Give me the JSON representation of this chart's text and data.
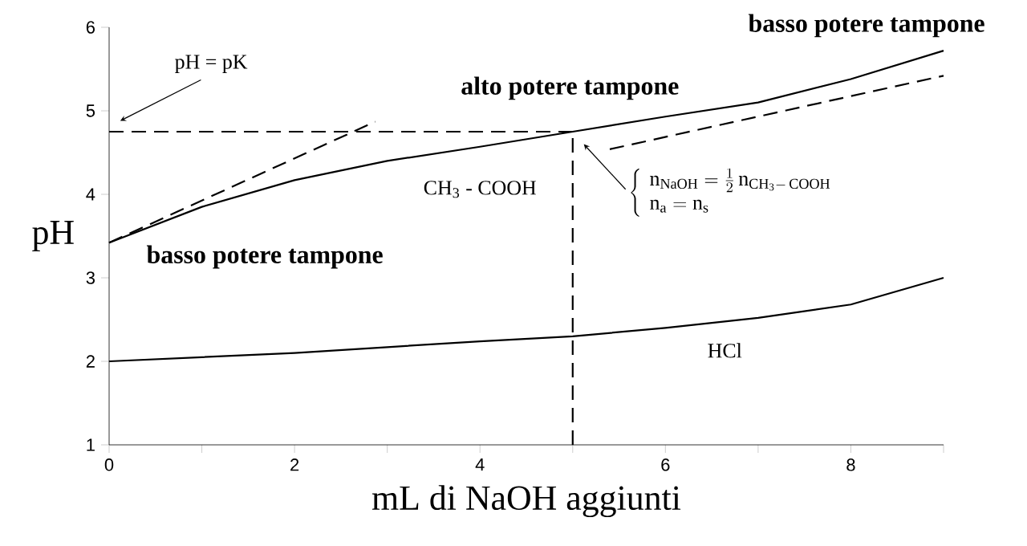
{
  "chart_data": {
    "type": "line",
    "xlabel": "mL di NaOH aggiunti",
    "ylabel": "pH",
    "xlim": [
      0,
      9
    ],
    "ylim": [
      1,
      6
    ],
    "xticks": [
      0,
      {
        "value": 1,
        "label": null
      },
      2,
      {
        "value": 3,
        "label": null
      },
      4,
      {
        "value": 5,
        "label": null
      },
      6,
      {
        "value": 7,
        "label": null
      },
      8,
      {
        "value": 9,
        "label": null
      }
    ],
    "yticks": [
      1,
      2,
      3,
      4,
      5,
      6
    ],
    "grid": false,
    "marker": "none",
    "series": [
      {
        "name": "CH$_{3}$ - COOH",
        "color": "#000000",
        "line_style": "solid",
        "x": [
          0,
          1,
          2,
          3,
          4,
          5,
          6,
          7,
          8,
          9
        ],
        "values": [
          3.42,
          3.85,
          4.17,
          4.4,
          4.57,
          4.75,
          4.93,
          5.1,
          5.38,
          5.72
        ]
      },
      {
        "name": "HCl",
        "color": "#000000",
        "line_style": "solid",
        "x": [
          0,
          1,
          2,
          3,
          4,
          5,
          6,
          7,
          8,
          9
        ],
        "values": [
          2.0,
          2.05,
          2.1,
          2.17,
          2.24,
          2.3,
          2.4,
          2.52,
          2.68,
          3.0
        ]
      },
      {
        "color": "#000000",
        "line_style": "dashed",
        "x": [
          0,
          2.87
        ],
        "values": [
          3.42,
          4.87
        ]
      },
      {
        "color": "#000000",
        "line_style": "dashed",
        "x": [
          5.4,
          9
        ],
        "values": [
          4.54,
          5.42
        ]
      },
      {
        "color": "#000000",
        "line_style": "dashed",
        "x": [
          0,
          5
        ],
        "values": [
          4.75,
          4.75
        ]
      },
      {
        "color": "#000000",
        "line_style": "dashed",
        "x": [
          5,
          5
        ],
        "values": [
          1,
          4.75
        ]
      }
    ],
    "annotations": [
      "pH = pK",
      "alto potere tampone",
      "basso potere tampone",
      "basso potere tampone",
      "\\left\\{\\begin{array}{l}\\mathrm{n}_{\\mathrm{NaOH}} = \\frac{1}{2}\\,\\mathrm{n}_{\\mathrm{CH_3{-}\\,COOH}} \\\\ \\mathrm{n}_{\\mathrm{a}} = \\mathrm{n}_{\\mathrm{s}}\\end{array}\\right."
    ]
  }
}
